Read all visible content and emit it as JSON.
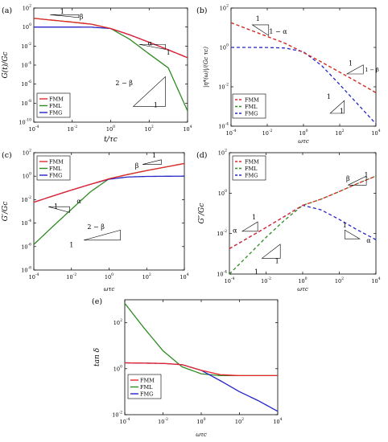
{
  "colors": {
    "FMM": "#e8262a",
    "FML": "#2e8b22",
    "FMG": "#2424c8",
    "axis": "#000000"
  },
  "chart_data": [
    {
      "id": "a",
      "type": "line",
      "panel_label": "(a)",
      "xlabel": "t/τc",
      "ylabel": "G(t)/Gc",
      "xscale": "log",
      "yscale": "log",
      "xlim": [
        0.0001,
        10000
      ],
      "ylim": [
        1e-10,
        100
      ],
      "xticks": [
        -4,
        -2,
        0,
        2,
        4
      ],
      "yticks": [
        -10,
        -8,
        -6,
        -4,
        -2,
        0,
        2
      ],
      "legend": {
        "position": "bottom-left",
        "entries": [
          "FMM",
          "FML",
          "FMG"
        ]
      },
      "series": [
        {
          "name": "FMM",
          "style": "solid",
          "x": [
            0.0001,
            0.001,
            0.01,
            0.1,
            1,
            10,
            100,
            1000,
            10000
          ],
          "y": [
            8.3,
            5.2,
            3.3,
            2.0,
            0.7,
            0.15,
            0.025,
            0.004,
            0.0006
          ]
        },
        {
          "name": "FML",
          "style": "solid",
          "x": [
            0.0001,
            0.001,
            0.01,
            0.1,
            1,
            10,
            100,
            1000,
            10000
          ],
          "y": [
            8.3,
            5.2,
            3.3,
            2.0,
            0.7,
            0.05,
            0.0015,
            5e-05,
            1.5e-09
          ]
        },
        {
          "name": "FMG",
          "style": "solid",
          "x": [
            0.0001,
            0.001,
            0.01,
            0.1,
            1,
            10,
            100,
            1000,
            10000
          ],
          "y": [
            1.0,
            1.0,
            1.0,
            0.98,
            0.7,
            0.15,
            0.025,
            0.004,
            0.0006
          ]
        }
      ],
      "annotations": [
        {
          "text": "1",
          "x": 0.003,
          "y": 25
        },
        {
          "text": "β",
          "x": 0.03,
          "y": 7
        },
        {
          "text": "α",
          "x": 110,
          "y": 0.012
        },
        {
          "text": "1",
          "x": 1000,
          "y": 0.0012
        },
        {
          "text": "2 − β",
          "x": 5,
          "y": 8e-07
        },
        {
          "text": "1",
          "x": 220,
          "y": 3.5e-09
        }
      ]
    },
    {
      "id": "b",
      "type": "line",
      "panel_label": "(b)",
      "xlabel": "ωτc",
      "ylabel": "|η*(ω)|/(Gc τc)",
      "xscale": "log",
      "yscale": "log",
      "xlim": [
        0.0001,
        10000
      ],
      "ylim": [
        0.0001,
        100
      ],
      "xticks": [
        -4,
        -2,
        0,
        2,
        4
      ],
      "yticks": [
        -4,
        -2,
        0,
        2
      ],
      "legend": {
        "position": "bottom-left",
        "entries": [
          "FMM",
          "FML",
          "FMG"
        ]
      },
      "series": [
        {
          "name": "FMM",
          "style": "dashed",
          "x": [
            0.0001,
            0.001,
            0.01,
            0.1,
            1,
            10,
            100,
            1000,
            10000
          ],
          "y": [
            18,
            8,
            3.6,
            1.6,
            0.55,
            0.18,
            0.055,
            0.017,
            0.005
          ]
        },
        {
          "name": "FML",
          "style": "dashed",
          "x": [
            0.0001,
            0.001,
            0.01,
            0.1,
            1,
            10,
            100,
            1000,
            10000
          ],
          "y": [
            18,
            8,
            3.6,
            1.6,
            0.55,
            0.18,
            0.055,
            0.017,
            0.005
          ]
        },
        {
          "name": "FMG",
          "style": "dashed",
          "x": [
            0.0001,
            0.001,
            0.01,
            0.1,
            1,
            10,
            100,
            1000,
            10000
          ],
          "y": [
            1,
            1,
            0.99,
            0.93,
            0.6,
            0.12,
            0.013,
            0.0013,
            0.00013
          ]
        }
      ],
      "annotations": [
        {
          "text": "1",
          "x": 0.003,
          "y": 22
        },
        {
          "text": "1 − α",
          "x": 0.04,
          "y": 5
        },
        {
          "text": "1",
          "x": 400,
          "y": 0.12
        },
        {
          "text": "1 − β",
          "x": 6000,
          "y": 0.06
        },
        {
          "text": "1",
          "x": 25,
          "y": 0.0025
        },
        {
          "text": "1",
          "x": 130,
          "y": 0.00045
        }
      ]
    },
    {
      "id": "c",
      "type": "line",
      "panel_label": "(c)",
      "xlabel": "ωτc",
      "ylabel": "G′/Gc",
      "xscale": "log",
      "yscale": "log",
      "xlim": [
        0.0001,
        10000
      ],
      "ylim": [
        1e-08,
        100
      ],
      "xticks": [
        -4,
        -2,
        0,
        2,
        4
      ],
      "yticks": [
        -8,
        -6,
        -4,
        -2,
        0,
        2
      ],
      "legend": {
        "position": "top-left",
        "entries": [
          "FMM",
          "FML",
          "FMG"
        ]
      },
      "series": [
        {
          "name": "FMM",
          "style": "solid",
          "x": [
            0.0001,
            0.001,
            0.01,
            0.1,
            1,
            10,
            100,
            1000,
            10000
          ],
          "y": [
            0.006,
            0.02,
            0.065,
            0.2,
            0.6,
            1.4,
            3,
            6,
            12
          ]
        },
        {
          "name": "FML",
          "style": "solid",
          "x": [
            0.0001,
            0.001,
            0.01,
            0.1,
            1,
            10,
            100,
            1000,
            10000
          ],
          "y": [
            1.5e-06,
            5e-05,
            0.0015,
            0.045,
            0.6,
            1.4,
            3,
            6,
            12
          ]
        },
        {
          "name": "FMG",
          "style": "solid",
          "x": [
            0.0001,
            0.001,
            0.01,
            0.1,
            1,
            10,
            100,
            1000,
            10000
          ],
          "y": [
            0.006,
            0.02,
            0.065,
            0.2,
            0.55,
            0.85,
            0.95,
            0.98,
            1
          ]
        }
      ],
      "annotations": [
        {
          "text": "β",
          "x": 30,
          "y": 5
        },
        {
          "text": "1",
          "x": 250,
          "y": 40
        },
        {
          "text": "1",
          "x": 0.0015,
          "y": 0.0018
        },
        {
          "text": "α",
          "x": 0.025,
          "y": 0.005
        },
        {
          "text": "2 − β",
          "x": 0.2,
          "y": 3e-05
        },
        {
          "text": "1",
          "x": 0.01,
          "y": 9e-07
        }
      ]
    },
    {
      "id": "d",
      "type": "line",
      "panel_label": "(d)",
      "xlabel": "ωτc",
      "ylabel": "G″/Gc",
      "xscale": "log",
      "yscale": "log",
      "xlim": [
        0.0001,
        10000
      ],
      "ylim": [
        0.0001,
        100
      ],
      "xticks": [
        -4,
        -2,
        0,
        2,
        4
      ],
      "yticks": [
        -4,
        -2,
        0,
        2
      ],
      "legend": {
        "position": "top-left",
        "entries": [
          "FMM",
          "FML",
          "FMG"
        ]
      },
      "series": [
        {
          "name": "FMM",
          "style": "dashed",
          "x": [
            0.0001,
            0.001,
            0.01,
            0.1,
            1,
            10,
            100,
            1000,
            10000
          ],
          "y": [
            0.0018,
            0.006,
            0.02,
            0.07,
            0.25,
            0.5,
            1.2,
            3,
            7
          ]
        },
        {
          "name": "FML",
          "style": "dashed",
          "x": [
            0.0001,
            0.001,
            0.01,
            0.1,
            1,
            10,
            100,
            1000,
            10000
          ],
          "y": [
            0.0001,
            0.0008,
            0.0065,
            0.045,
            0.25,
            0.5,
            1.2,
            3,
            7
          ]
        },
        {
          "name": "FMG",
          "style": "dashed",
          "x": [
            0.0001,
            0.001,
            0.01,
            0.1,
            1,
            10,
            100,
            1000,
            10000
          ],
          "y": [
            0.0018,
            0.006,
            0.02,
            0.07,
            0.25,
            0.15,
            0.05,
            0.015,
            0.005
          ]
        }
      ],
      "annotations": [
        {
          "text": "β",
          "x": 300,
          "y": 4
        },
        {
          "text": "1",
          "x": 3000,
          "y": 6
        },
        {
          "text": "α",
          "x": 0.0002,
          "y": 0.011
        },
        {
          "text": "1",
          "x": 0.0022,
          "y": 0.05
        },
        {
          "text": "1",
          "x": 0.04,
          "y": 0.00035
        },
        {
          "text": "1",
          "x": 0.003,
          "y": 0.0001
        },
        {
          "text": "1",
          "x": 200,
          "y": 0.02
        },
        {
          "text": "α",
          "x": 4000,
          "y": 0.0035
        }
      ]
    },
    {
      "id": "e",
      "type": "line",
      "panel_label": "(e)",
      "xlabel": "ωτc",
      "ylabel": "tan δ",
      "xscale": "log",
      "yscale": "log",
      "xlim": [
        0.0001,
        10000
      ],
      "ylim": [
        0.01,
        1000
      ],
      "xticks": [
        -4,
        -2,
        0,
        2,
        4
      ],
      "yticks": [
        -2,
        0,
        2
      ],
      "legend": {
        "position": "bottom-left",
        "entries": [
          "FMM",
          "FML",
          "FMG"
        ]
      },
      "series": [
        {
          "name": "FMM",
          "style": "solid",
          "x": [
            0.0001,
            0.001,
            0.01,
            0.1,
            1,
            10,
            100,
            1000,
            10000
          ],
          "y": [
            1.8,
            1.75,
            1.7,
            1.5,
            0.85,
            0.55,
            0.5,
            0.5,
            0.5
          ]
        },
        {
          "name": "FML",
          "style": "solid",
          "x": [
            0.0001,
            0.001,
            0.01,
            0.1,
            1,
            10,
            100,
            1000,
            10000
          ],
          "y": [
            700,
            60,
            6,
            1.2,
            0.6,
            0.5,
            0.5,
            0.5,
            0.5
          ]
        },
        {
          "name": "FMG",
          "style": "solid",
          "x": [
            0.0001,
            0.001,
            0.01,
            0.1,
            1,
            10,
            100,
            1000,
            10000
          ],
          "y": [
            1.8,
            1.75,
            1.7,
            1.5,
            0.85,
            0.3,
            0.1,
            0.04,
            0.014
          ]
        }
      ],
      "annotations": []
    }
  ]
}
